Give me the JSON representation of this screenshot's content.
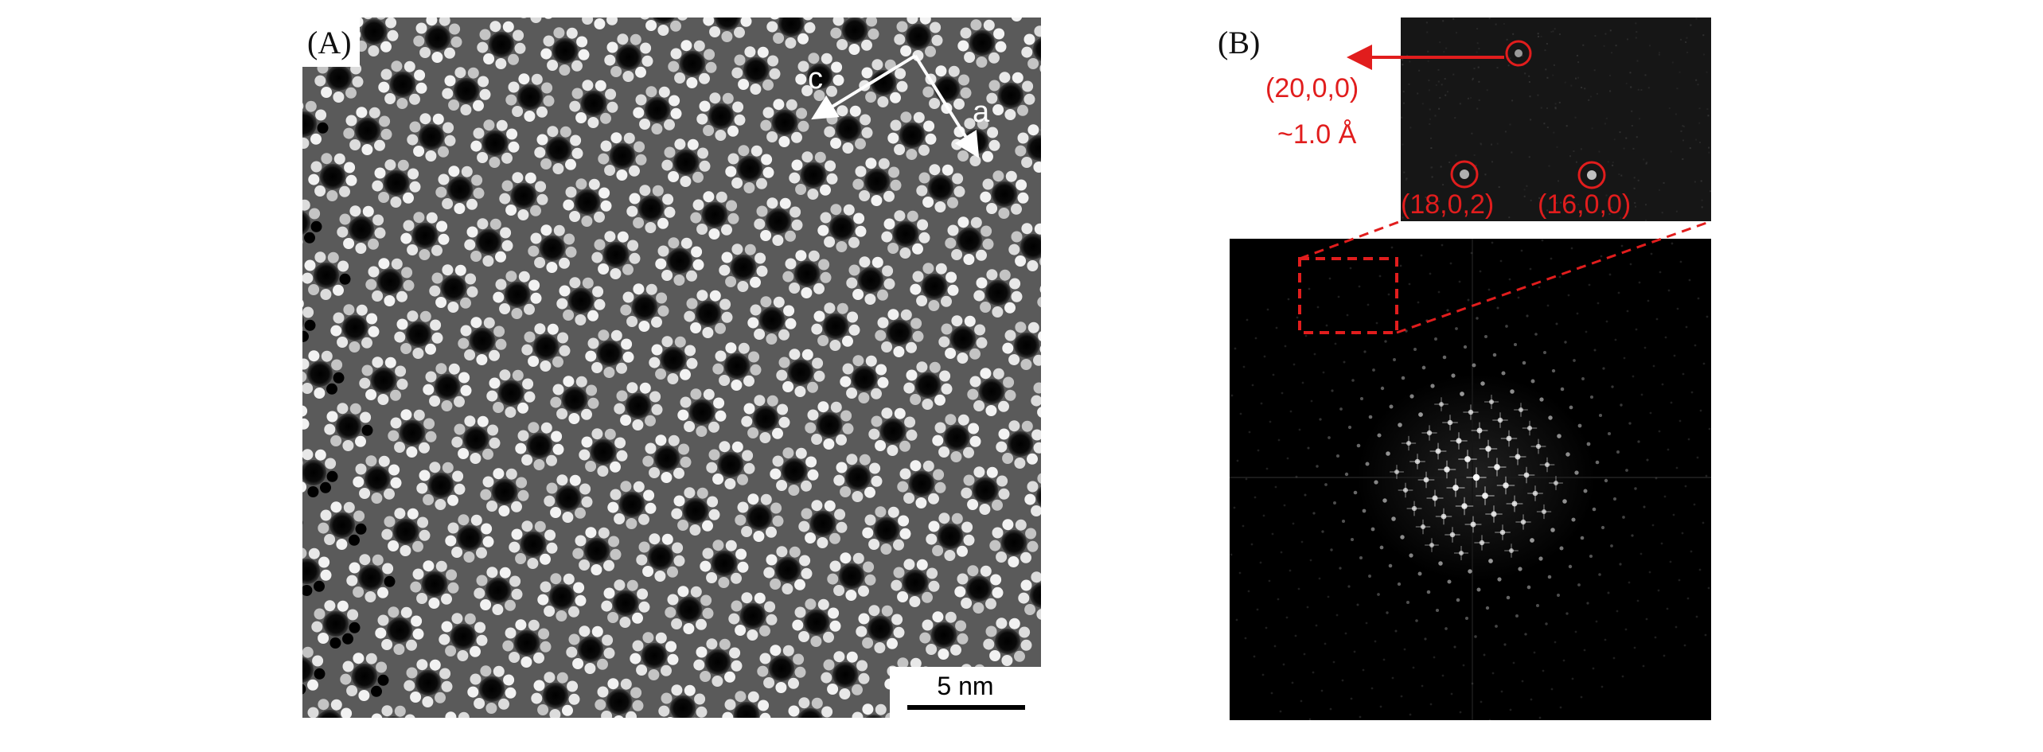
{
  "panel_a": {
    "label": "(A)",
    "axis_c": "c",
    "axis_a": "a",
    "scale_bar": "5 nm"
  },
  "panel_b": {
    "label": "(B)",
    "reflection_top": "(20,0,0)",
    "d_spacing": "~1.0 Å",
    "reflection_left": "(18,0,2)",
    "reflection_right": "(16,0,0)"
  },
  "colors": {
    "annotation_red": "#e11d1d",
    "image_dark": "#000000",
    "lattice_light": "#d8d8d8"
  }
}
